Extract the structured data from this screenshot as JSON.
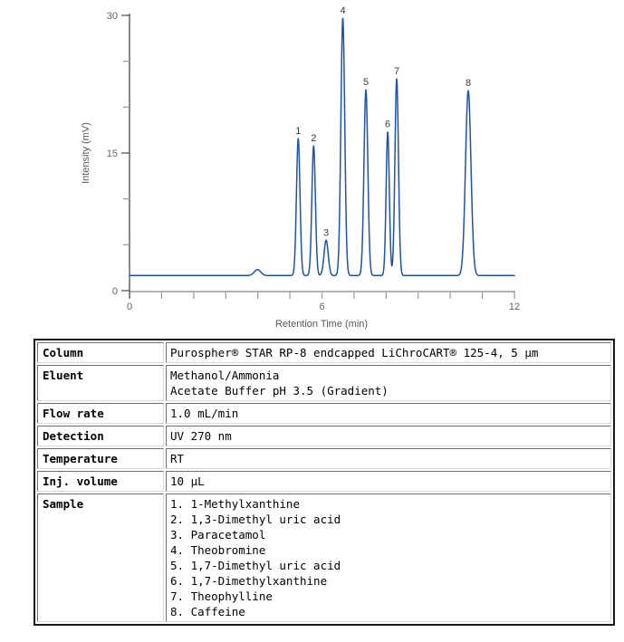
{
  "chart_data": {
    "type": "line",
    "title": "",
    "xlabel": "Retention Time (min)",
    "ylabel": "Intensity (mV)",
    "xlim": [
      0,
      12
    ],
    "ylim": [
      0,
      30
    ],
    "x_tick_step": 1,
    "x_labeled_ticks": [
      0,
      6,
      12
    ],
    "y_tick_step": 5,
    "y_labeled_ticks": [
      0,
      15,
      30
    ],
    "grid": false,
    "legend": false,
    "line_color": "#1d53ad",
    "baseline_mv": 1.65,
    "unlabeled_bump": {
      "rt": 3.99,
      "apex_mv": 2.3,
      "sigma": 0.1
    },
    "peaks": [
      {
        "label": "1",
        "rt": 5.26,
        "apex_mv": 16.6,
        "sigma": 0.055
      },
      {
        "label": "2",
        "rt": 5.74,
        "apex_mv": 15.8,
        "sigma": 0.055
      },
      {
        "label": "3",
        "rt": 6.13,
        "apex_mv": 5.5,
        "sigma": 0.065
      },
      {
        "label": "4",
        "rt": 6.65,
        "apex_mv": 29.7,
        "sigma": 0.06
      },
      {
        "label": "5",
        "rt": 7.37,
        "apex_mv": 21.9,
        "sigma": 0.06
      },
      {
        "label": "6",
        "rt": 8.05,
        "apex_mv": 17.3,
        "sigma": 0.05
      },
      {
        "label": "7",
        "rt": 8.33,
        "apex_mv": 23.1,
        "sigma": 0.055
      },
      {
        "label": "8",
        "rt": 10.56,
        "apex_mv": 21.8,
        "sigma": 0.085
      }
    ]
  },
  "conditions_table": {
    "rows": [
      {
        "label": "Column",
        "lines": [
          "Purospher® STAR RP-8 endcapped LiChroCART® 125-4, 5 μm"
        ]
      },
      {
        "label": "Eluent",
        "lines": [
          "Methanol/Ammonia",
          "Acetate Buffer pH 3.5 (Gradient)"
        ]
      },
      {
        "label": "Flow rate",
        "lines": [
          "1.0 mL/min"
        ]
      },
      {
        "label": "Detection",
        "lines": [
          "UV 270 nm"
        ]
      },
      {
        "label": "Temperature",
        "lines": [
          "RT"
        ]
      },
      {
        "label": "Inj. volume",
        "lines": [
          "10 μL"
        ]
      },
      {
        "label": "Sample",
        "lines": [
          "1. 1-Methylxanthine",
          "2. 1,3-Dimethyl uric acid",
          "3. Paracetamol",
          "4. Theobromine",
          "5. 1,7-Dimethyl uric acid",
          "6. 1,7-Dimethylxanthine",
          "7. Theophylline",
          "8. Caffeine"
        ]
      }
    ]
  }
}
